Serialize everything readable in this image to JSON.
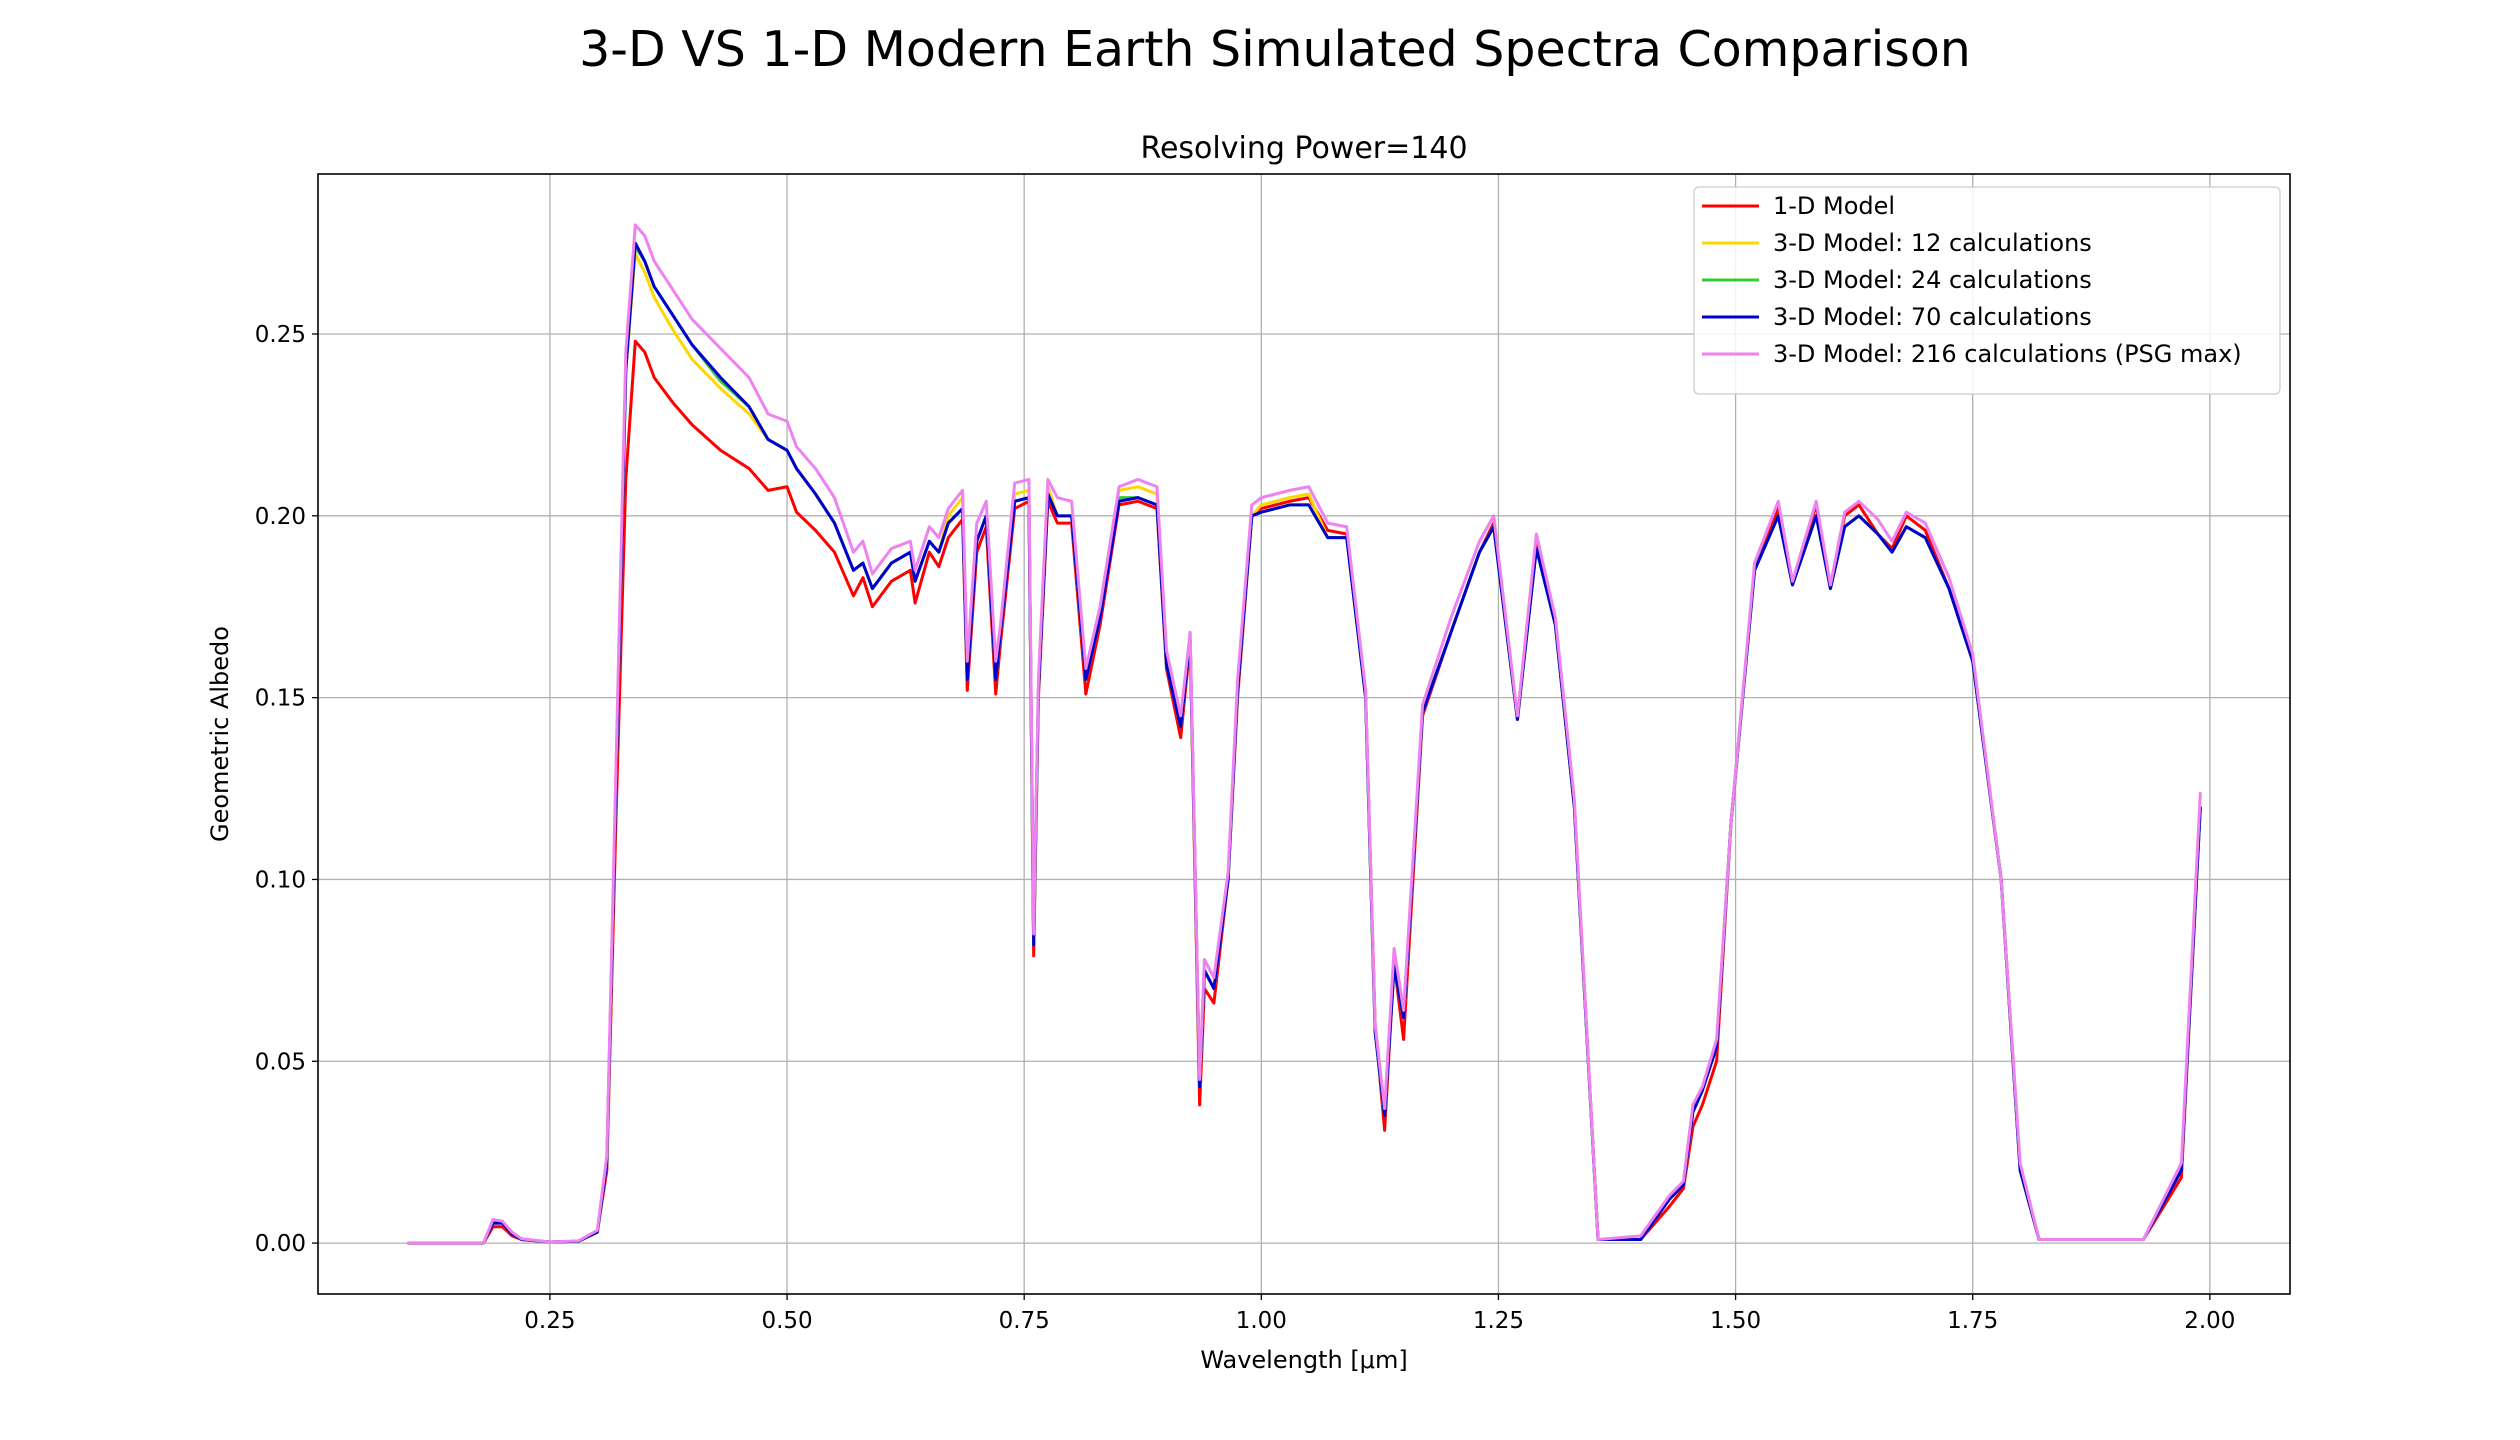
{
  "chart_data": {
    "type": "line",
    "title": "3-D VS 1-D Modern Earth Simulated Spectra Comparison",
    "subtitle": "Resolving Power=140",
    "x_label": "Wavelength [μm]",
    "y_label": "Geometric Albedo",
    "grid": true,
    "legend": "upper right",
    "xlim": [
      0.0055,
      2.0845
    ],
    "ylim": [
      -0.014,
      0.294
    ],
    "xticks": [
      0.25,
      {
        "value": 0.5,
        "label": "0.50"
      },
      0.75,
      {
        "value": 1,
        "label": "1.00"
      },
      1.25,
      {
        "value": 1.5,
        "label": "1.50"
      },
      1.75,
      {
        "value": 2,
        "label": "2.00"
      }
    ],
    "yticks": [
      {
        "value": 0,
        "label": "0.00"
      },
      0.05,
      {
        "value": 0.1,
        "label": "0.10"
      },
      0.15,
      {
        "value": 0.2,
        "label": "0.20"
      },
      0.25
    ],
    "x": [
      0.1,
      0.18,
      0.19,
      0.2,
      0.21,
      0.22,
      0.25,
      0.28,
      0.3,
      0.31,
      0.32,
      0.33,
      0.34,
      0.35,
      0.36,
      0.38,
      0.4,
      0.43,
      0.46,
      0.48,
      0.5,
      0.51,
      0.53,
      0.55,
      0.57,
      0.58,
      0.59,
      0.61,
      0.63,
      0.635,
      0.65,
      0.66,
      0.67,
      0.685,
      0.69,
      0.7,
      0.71,
      0.72,
      0.725,
      0.74,
      0.755,
      0.76,
      0.765,
      0.775,
      0.785,
      0.8,
      0.815,
      0.83,
      0.85,
      0.87,
      0.89,
      0.9,
      0.915,
      0.925,
      0.935,
      0.94,
      0.95,
      0.965,
      0.975,
      0.99,
      1.0,
      1.03,
      1.05,
      1.07,
      1.09,
      1.11,
      1.12,
      1.13,
      1.14,
      1.15,
      1.17,
      1.2,
      1.23,
      1.245,
      1.27,
      1.29,
      1.31,
      1.33,
      1.355,
      1.4,
      1.43,
      1.445,
      1.455,
      1.465,
      1.48,
      1.495,
      1.52,
      1.545,
      1.56,
      1.585,
      1.6,
      1.615,
      1.63,
      1.65,
      1.665,
      1.68,
      1.7,
      1.725,
      1.75,
      1.78,
      1.8,
      1.82,
      1.93,
      1.97,
      1.99
    ],
    "series": [
      {
        "name": "1-D Model",
        "color": "#ff0000",
        "values": [
          0,
          0,
          0.0045,
          0.0045,
          0.002,
          0.001,
          0.0003,
          0.0005,
          0.003,
          0.02,
          0.12,
          0.21,
          0.248,
          0.245,
          0.238,
          0.231,
          0.225,
          0.218,
          0.213,
          0.207,
          0.208,
          0.201,
          0.196,
          0.19,
          0.178,
          0.183,
          0.175,
          0.182,
          0.185,
          0.176,
          0.19,
          0.186,
          0.194,
          0.199,
          0.152,
          0.19,
          0.197,
          0.151,
          0.165,
          0.202,
          0.204,
          0.079,
          0.15,
          0.204,
          0.198,
          0.198,
          0.151,
          0.17,
          0.203,
          0.204,
          0.202,
          0.158,
          0.139,
          0.165,
          0.038,
          0.07,
          0.066,
          0.1,
          0.15,
          0.2,
          0.202,
          0.204,
          0.205,
          0.196,
          0.195,
          0.15,
          0.06,
          0.031,
          0.077,
          0.056,
          0.145,
          0.168,
          0.19,
          0.198,
          0.144,
          0.192,
          0.17,
          0.12,
          0.001,
          0.001,
          0.01,
          0.015,
          0.032,
          0.038,
          0.05,
          0.115,
          0.185,
          0.202,
          0.181,
          0.203,
          0.18,
          0.2,
          0.203,
          0.195,
          0.191,
          0.2,
          0.196,
          0.18,
          0.16,
          0.1,
          0.02,
          0.001,
          0.001,
          0.018,
          0.12
        ]
      },
      {
        "name": "3-D Model: 12 calculations",
        "color": "#ffd700",
        "values": [
          0,
          0,
          0.0055,
          0.0055,
          0.0025,
          0.001,
          0.0003,
          0.0005,
          0.003,
          0.022,
          0.13,
          0.24,
          0.272,
          0.267,
          0.26,
          0.251,
          0.243,
          0.235,
          0.228,
          0.221,
          0.218,
          0.213,
          0.206,
          0.198,
          0.185,
          0.187,
          0.18,
          0.187,
          0.19,
          0.182,
          0.193,
          0.19,
          0.2,
          0.205,
          0.155,
          0.193,
          0.2,
          0.155,
          0.168,
          0.206,
          0.207,
          0.082,
          0.152,
          0.208,
          0.2,
          0.2,
          0.155,
          0.172,
          0.207,
          0.208,
          0.206,
          0.159,
          0.142,
          0.166,
          0.043,
          0.075,
          0.07,
          0.1,
          0.152,
          0.2,
          0.203,
          0.205,
          0.206,
          0.194,
          0.194,
          0.15,
          0.058,
          0.035,
          0.076,
          0.062,
          0.146,
          0.168,
          0.19,
          0.197,
          0.144,
          0.191,
          0.17,
          0.12,
          0.001,
          0.001,
          0.012,
          0.016,
          0.036,
          0.042,
          0.054,
          0.115,
          0.185,
          0.2,
          0.181,
          0.2,
          0.18,
          0.197,
          0.2,
          0.195,
          0.19,
          0.197,
          0.194,
          0.18,
          0.16,
          0.1,
          0.02,
          0.001,
          0.001,
          0.02,
          0.12
        ]
      },
      {
        "name": "3-D Model: 24 calculations",
        "color": "#32cd32",
        "values": [
          0,
          0,
          0.0055,
          0.0055,
          0.0025,
          0.001,
          0.0003,
          0.0005,
          0.003,
          0.022,
          0.13,
          0.24,
          0.274,
          0.27,
          0.263,
          0.255,
          0.247,
          0.237,
          0.23,
          0.221,
          0.218,
          0.213,
          0.206,
          0.198,
          0.185,
          0.187,
          0.18,
          0.187,
          0.19,
          0.182,
          0.193,
          0.19,
          0.198,
          0.202,
          0.155,
          0.193,
          0.2,
          0.155,
          0.168,
          0.204,
          0.205,
          0.082,
          0.152,
          0.206,
          0.2,
          0.2,
          0.155,
          0.172,
          0.205,
          0.205,
          0.203,
          0.159,
          0.142,
          0.166,
          0.043,
          0.075,
          0.07,
          0.1,
          0.152,
          0.2,
          0.201,
          0.203,
          0.203,
          0.194,
          0.194,
          0.15,
          0.058,
          0.035,
          0.076,
          0.062,
          0.146,
          0.168,
          0.19,
          0.197,
          0.144,
          0.191,
          0.17,
          0.12,
          0.001,
          0.001,
          0.012,
          0.016,
          0.036,
          0.042,
          0.054,
          0.115,
          0.185,
          0.2,
          0.181,
          0.2,
          0.18,
          0.197,
          0.2,
          0.195,
          0.19,
          0.197,
          0.194,
          0.18,
          0.16,
          0.1,
          0.02,
          0.001,
          0.001,
          0.02,
          0.12
        ]
      },
      {
        "name": "3-D Model: 70 calculations",
        "color": "#0000cd",
        "values": [
          0,
          0,
          0.0055,
          0.0055,
          0.0025,
          0.001,
          0.0003,
          0.0005,
          0.003,
          0.022,
          0.13,
          0.24,
          0.275,
          0.27,
          0.263,
          0.255,
          0.247,
          0.238,
          0.23,
          0.221,
          0.218,
          0.213,
          0.206,
          0.198,
          0.185,
          0.187,
          0.18,
          0.187,
          0.19,
          0.182,
          0.193,
          0.19,
          0.198,
          0.202,
          0.155,
          0.193,
          0.2,
          0.155,
          0.168,
          0.204,
          0.205,
          0.082,
          0.152,
          0.206,
          0.2,
          0.2,
          0.155,
          0.172,
          0.204,
          0.205,
          0.203,
          0.159,
          0.142,
          0.166,
          0.043,
          0.075,
          0.07,
          0.1,
          0.152,
          0.2,
          0.201,
          0.203,
          0.203,
          0.194,
          0.194,
          0.15,
          0.058,
          0.035,
          0.076,
          0.062,
          0.146,
          0.168,
          0.19,
          0.197,
          0.144,
          0.191,
          0.17,
          0.12,
          0.001,
          0.001,
          0.012,
          0.016,
          0.036,
          0.042,
          0.054,
          0.115,
          0.185,
          0.2,
          0.181,
          0.2,
          0.18,
          0.197,
          0.2,
          0.195,
          0.19,
          0.197,
          0.194,
          0.18,
          0.16,
          0.1,
          0.02,
          0.001,
          0.001,
          0.02,
          0.12
        ]
      },
      {
        "name": "3-D Model: 216 calculations (PSG max)",
        "color": "#ee82ee",
        "values": [
          0,
          0,
          0.0065,
          0.006,
          0.003,
          0.0012,
          0.0003,
          0.0006,
          0.0035,
          0.024,
          0.135,
          0.245,
          0.28,
          0.277,
          0.27,
          0.262,
          0.254,
          0.246,
          0.238,
          0.228,
          0.226,
          0.219,
          0.213,
          0.205,
          0.19,
          0.193,
          0.184,
          0.191,
          0.193,
          0.185,
          0.197,
          0.194,
          0.202,
          0.207,
          0.16,
          0.198,
          0.204,
          0.16,
          0.17,
          0.209,
          0.21,
          0.085,
          0.155,
          0.21,
          0.205,
          0.204,
          0.158,
          0.175,
          0.208,
          0.21,
          0.208,
          0.163,
          0.145,
          0.168,
          0.045,
          0.078,
          0.073,
          0.102,
          0.155,
          0.203,
          0.205,
          0.207,
          0.208,
          0.198,
          0.197,
          0.152,
          0.06,
          0.037,
          0.081,
          0.064,
          0.148,
          0.172,
          0.193,
          0.2,
          0.145,
          0.195,
          0.172,
          0.122,
          0.001,
          0.002,
          0.013,
          0.017,
          0.038,
          0.043,
          0.056,
          0.115,
          0.187,
          0.204,
          0.182,
          0.204,
          0.181,
          0.201,
          0.204,
          0.199,
          0.193,
          0.201,
          0.198,
          0.183,
          0.162,
          0.1,
          0.022,
          0.001,
          0.001,
          0.022,
          0.124
        ]
      }
    ]
  }
}
